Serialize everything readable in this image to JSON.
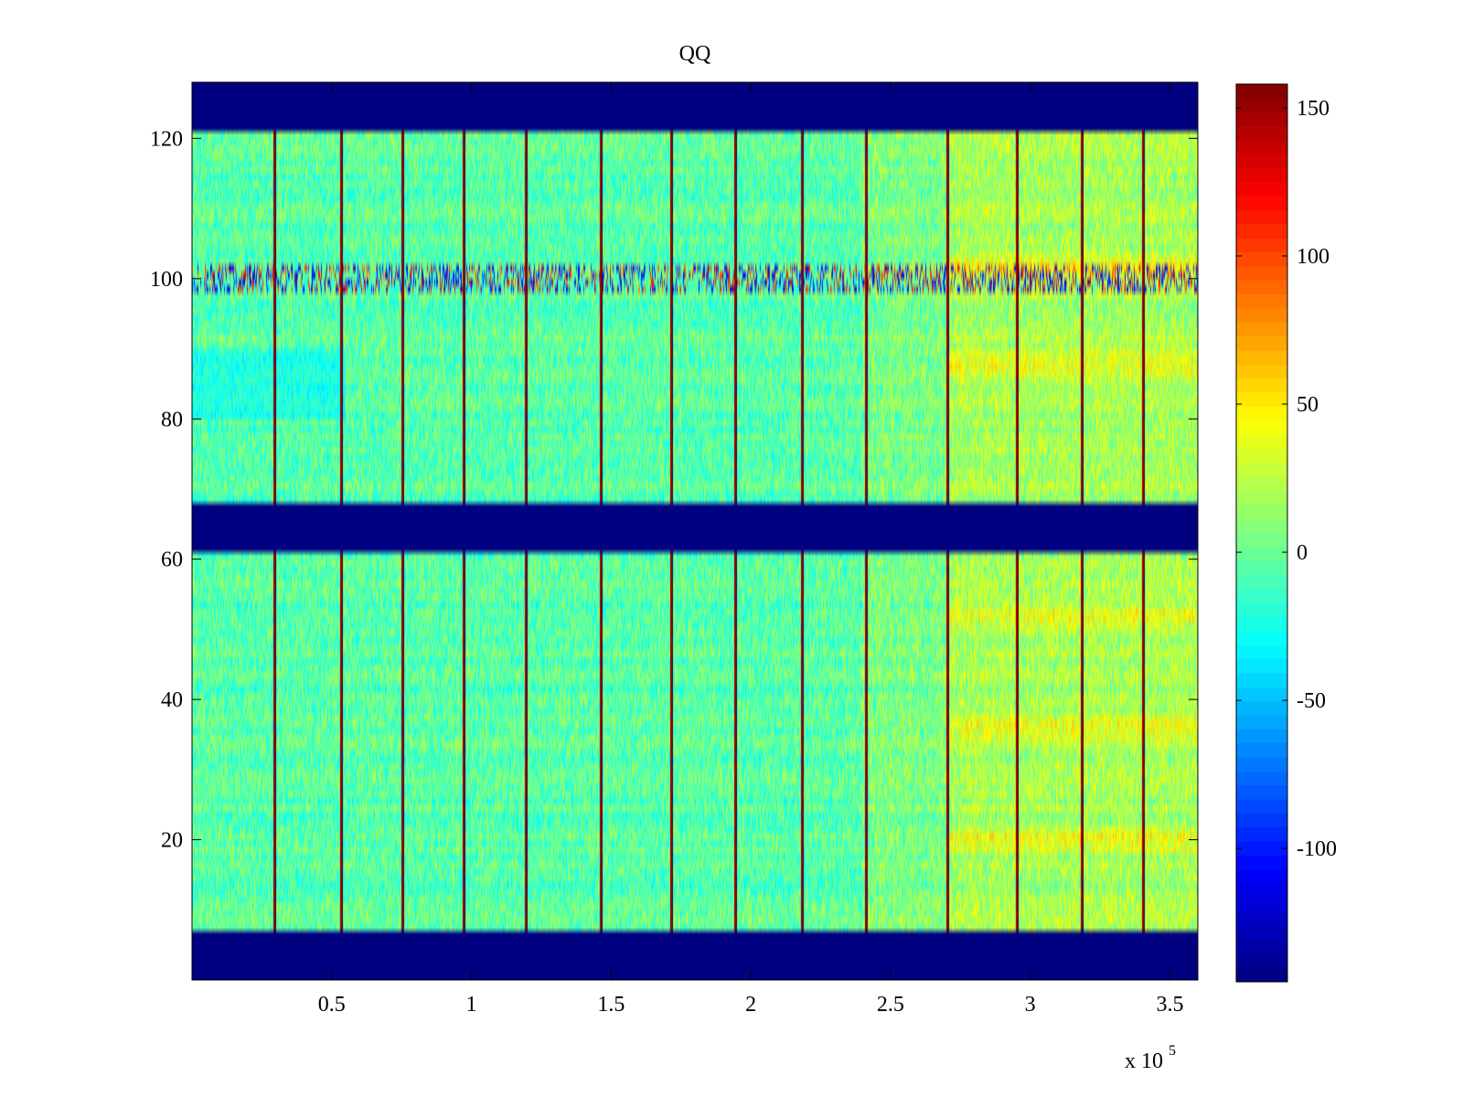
{
  "chart_data": {
    "type": "heatmap",
    "title": "QQ",
    "xlabel": "",
    "ylabel": "",
    "x_multiplier_label": "x 10",
    "x_multiplier_exponent": "5",
    "x_scale": 100000,
    "xlim": [
      0,
      3.6
    ],
    "ylim": [
      0,
      128
    ],
    "x_ticks": [
      0.5,
      1,
      1.5,
      2,
      2.5,
      3,
      3.5
    ],
    "x_tick_labels": [
      "0.5",
      "1",
      "1.5",
      "2",
      "2.5",
      "3",
      "3.5"
    ],
    "y_ticks": [
      20,
      40,
      60,
      80,
      100,
      120
    ],
    "y_tick_labels": [
      "20",
      "40",
      "60",
      "80",
      "100",
      "120"
    ],
    "colormap": "jet",
    "clim": [
      -145,
      158
    ],
    "colorbar_ticks": [
      150,
      100,
      50,
      0,
      -50,
      -100
    ],
    "colorbar_tick_labels": [
      "150",
      "100",
      "50",
      "0",
      "-50",
      "-100"
    ],
    "fill_value": -145,
    "masked_row_bands": [
      [
        0,
        7
      ],
      [
        61,
        68
      ],
      [
        121,
        128
      ]
    ],
    "data_row_bands": [
      [
        7,
        61
      ],
      [
        68,
        121
      ]
    ],
    "column_separators_x": [
      0.29,
      0.53,
      0.75,
      0.97,
      1.19,
      1.46,
      1.71,
      1.94,
      2.18,
      2.41,
      2.7,
      2.95,
      3.18,
      3.4
    ],
    "separator_value": 150,
    "noisy_row": 100,
    "mean_levels": [
      {
        "x_range": [
          0,
          2.4
        ],
        "value": -5
      },
      {
        "x_range": [
          2.4,
          2.7
        ],
        "value": 5
      },
      {
        "x_range": [
          2.7,
          3.6
        ],
        "value": 18
      }
    ],
    "warm_rows": [
      20,
      36,
      52,
      88,
      102
    ],
    "warm_rows_x_range": [
      2.7,
      3.6
    ],
    "warm_row_peak_value": 60,
    "cool_patch": {
      "x_range": [
        0,
        0.55
      ],
      "y_range": [
        80,
        90
      ],
      "value": -40
    },
    "noise_amplitude": 25
  }
}
